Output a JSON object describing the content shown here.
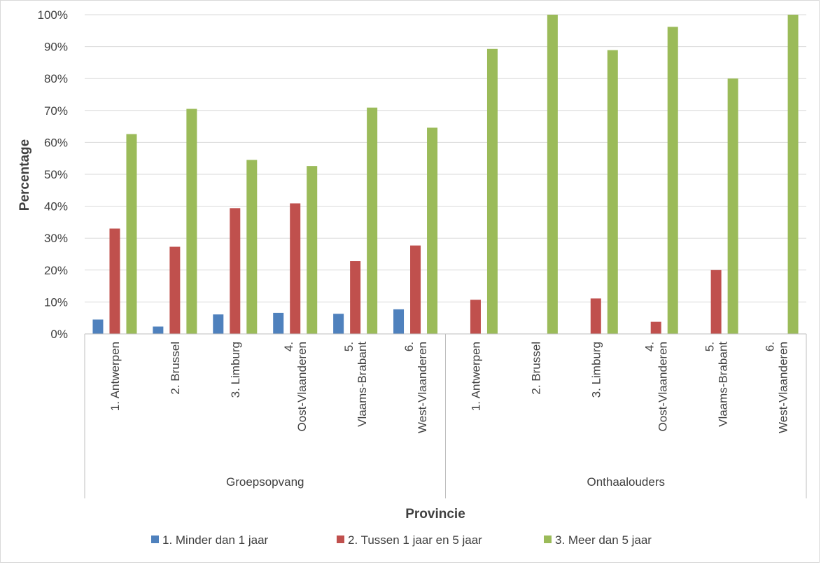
{
  "chart_data": {
    "type": "bar",
    "ylabel": "Percentage",
    "xlabel": "Provincie",
    "ylim": [
      0,
      100
    ],
    "yticks": [
      "0%",
      "10%",
      "20%",
      "30%",
      "40%",
      "50%",
      "60%",
      "70%",
      "80%",
      "90%",
      "100%"
    ],
    "grid": true,
    "legend_position": "bottom",
    "groups": [
      {
        "name": "Groepsopvang",
        "categories": [
          [
            "1. Antwerpen"
          ],
          [
            "2. Brussel"
          ],
          [
            "3. Limburg"
          ],
          [
            "4.",
            "Oost-Vlaanderen"
          ],
          [
            "5.",
            "Vlaams-Brabant"
          ],
          [
            "6.",
            "West-Vlaanderen"
          ]
        ]
      },
      {
        "name": "Onthaalouders",
        "categories": [
          [
            "1. Antwerpen"
          ],
          [
            "2. Brussel"
          ],
          [
            "3. Limburg"
          ],
          [
            "4.",
            "Oost-Vlaanderen"
          ],
          [
            "5.",
            "Vlaams-Brabant"
          ],
          [
            "6.",
            "West-Vlaanderen"
          ]
        ]
      }
    ],
    "series": [
      {
        "name": "1. Minder dan 1 jaar",
        "color": "#4f81bd",
        "values": [
          4.5,
          2.3,
          6.1,
          6.6,
          6.3,
          7.7,
          0,
          0,
          0,
          0,
          0,
          0
        ]
      },
      {
        "name": "2. Tussen 1 jaar en 5 jaar",
        "color": "#c0504d",
        "values": [
          33.0,
          27.3,
          39.4,
          40.9,
          22.8,
          27.7,
          10.7,
          0,
          11.1,
          3.8,
          20.0,
          0
        ]
      },
      {
        "name": "3. Meer dan 5 jaar",
        "color": "#9bbb59",
        "values": [
          62.6,
          70.5,
          54.5,
          52.6,
          70.9,
          64.6,
          89.3,
          100,
          88.9,
          96.2,
          80.0,
          100
        ]
      }
    ]
  }
}
